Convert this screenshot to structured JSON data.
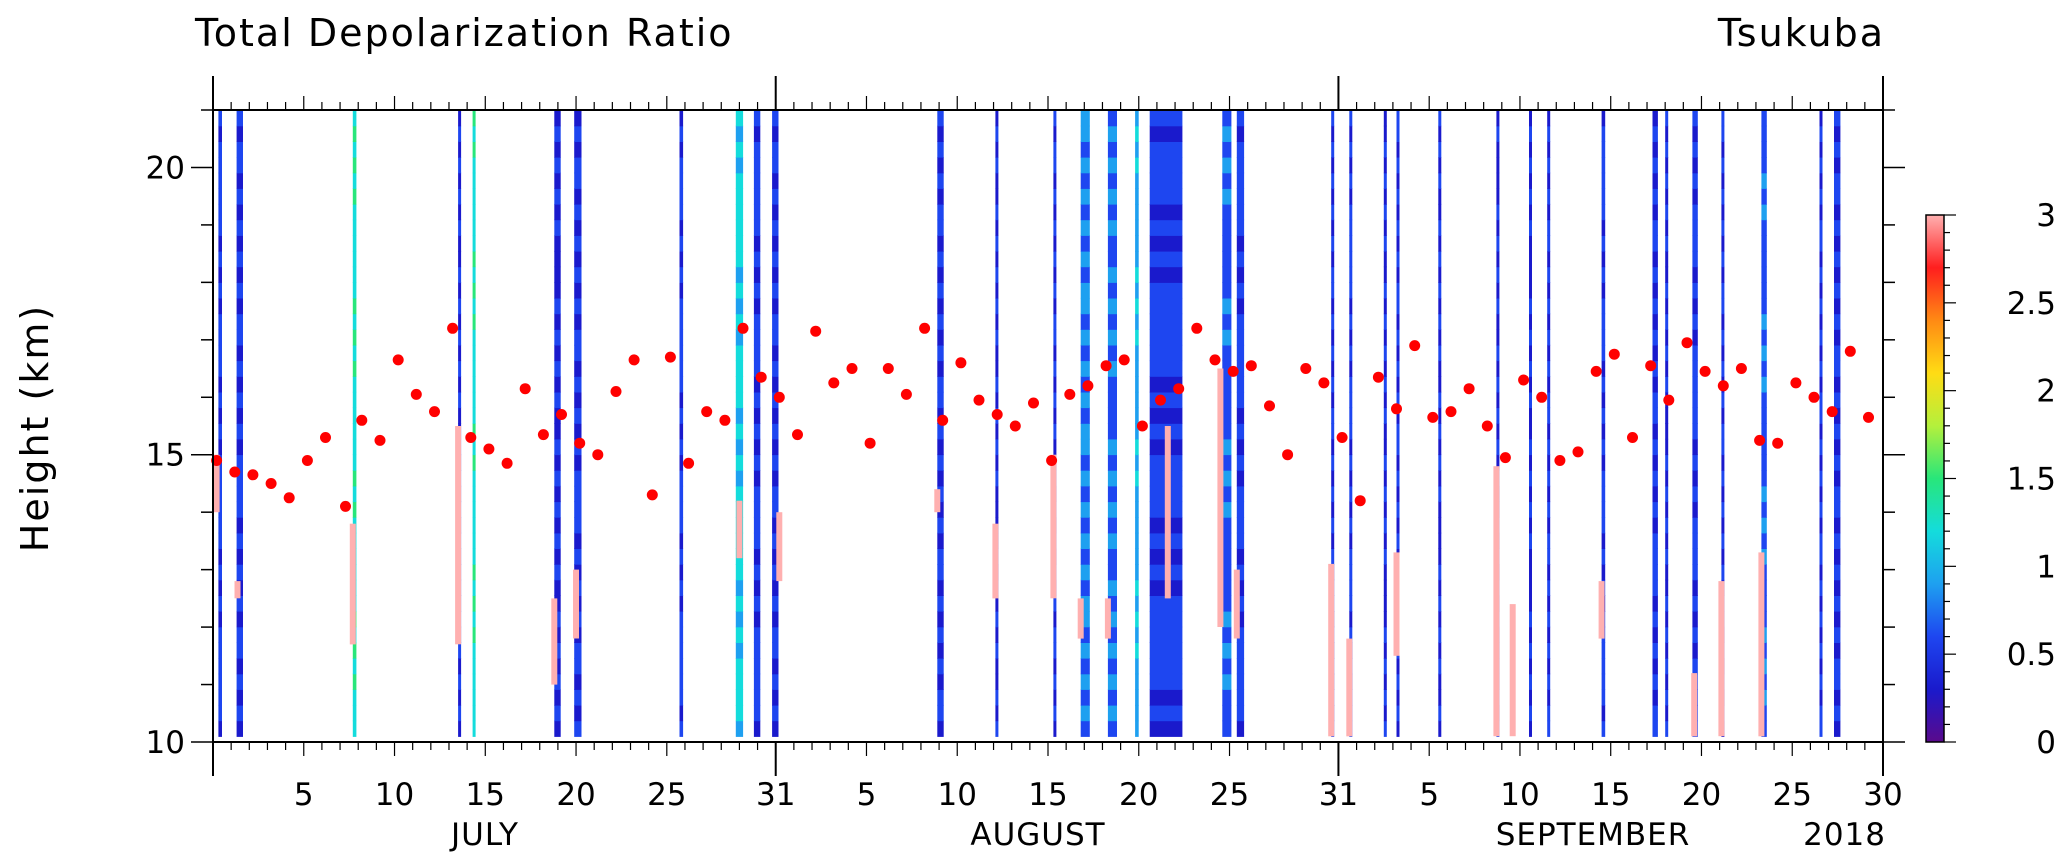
{
  "chart_data": {
    "type": "heatmap",
    "title": "Total Depolarization Ratio",
    "station": "Tsukuba",
    "ylabel": "Height (km)",
    "ylim": [
      10,
      21
    ],
    "y_ticks": [
      10,
      15,
      20
    ],
    "x_range_days": [
      0,
      92
    ],
    "year_label": "2018",
    "months": [
      "JULY",
      "AUGUST",
      "SEPTEMBER"
    ],
    "day_ticks": [
      {
        "day": 5,
        "label": "5"
      },
      {
        "day": 10,
        "label": "10"
      },
      {
        "day": 15,
        "label": "15"
      },
      {
        "day": 20,
        "label": "20"
      },
      {
        "day": 25,
        "label": "25"
      },
      {
        "day": 31,
        "label": "31"
      },
      {
        "day": 36,
        "label": "5"
      },
      {
        "day": 41,
        "label": "10"
      },
      {
        "day": 46,
        "label": "15"
      },
      {
        "day": 51,
        "label": "20"
      },
      {
        "day": 56,
        "label": "25"
      },
      {
        "day": 62,
        "label": "31"
      },
      {
        "day": 67,
        "label": "5"
      },
      {
        "day": 72,
        "label": "10"
      },
      {
        "day": 77,
        "label": "15"
      },
      {
        "day": 82,
        "label": "20"
      },
      {
        "day": 87,
        "label": "25"
      },
      {
        "day": 92,
        "label": "30"
      }
    ],
    "colorbar": {
      "min": 0,
      "max": 3,
      "tick_labels": [
        "0",
        "0.5",
        "1",
        "1.5",
        "2",
        "2.5",
        "3"
      ],
      "tick_values": [
        0,
        0.5,
        1,
        1.5,
        2,
        2.5,
        3
      ]
    },
    "profiles": [
      {
        "x": 0.3,
        "w": 0.2,
        "level": 0.45
      },
      {
        "x": 1.3,
        "w": 0.35,
        "level": 0.4
      },
      {
        "x": 7.7,
        "w": 0.2,
        "level": 0.9
      },
      {
        "x": 13.5,
        "w": 0.15,
        "level": 0.35
      },
      {
        "x": 14.3,
        "w": 0.15,
        "level": 0.9
      },
      {
        "x": 18.8,
        "w": 0.35,
        "level": 0.35
      },
      {
        "x": 19.9,
        "w": 0.4,
        "level": 0.4
      },
      {
        "x": 25.7,
        "w": 0.2,
        "level": 0.45
      },
      {
        "x": 28.8,
        "w": 0.4,
        "level": 0.85
      },
      {
        "x": 29.8,
        "w": 0.35,
        "level": 0.45
      },
      {
        "x": 30.8,
        "w": 0.35,
        "level": 0.4
      },
      {
        "x": 39.9,
        "w": 0.35,
        "level": 0.4
      },
      {
        "x": 43.1,
        "w": 0.15,
        "level": 0.35
      },
      {
        "x": 46.3,
        "w": 0.15,
        "level": 0.4
      },
      {
        "x": 47.8,
        "w": 0.5,
        "level": 0.6
      },
      {
        "x": 49.3,
        "w": 0.5,
        "level": 0.55
      },
      {
        "x": 50.8,
        "w": 0.2,
        "level": 0.7
      },
      {
        "x": 51.6,
        "w": 1.8,
        "level": 0.45
      },
      {
        "x": 55.6,
        "w": 0.5,
        "level": 0.5
      },
      {
        "x": 56.4,
        "w": 0.4,
        "level": 0.45
      },
      {
        "x": 61.6,
        "w": 0.15,
        "level": 0.4
      },
      {
        "x": 62.6,
        "w": 0.15,
        "level": 0.45
      },
      {
        "x": 64.5,
        "w": 0.15,
        "level": 0.35
      },
      {
        "x": 65.2,
        "w": 0.15,
        "level": 0.4
      },
      {
        "x": 67.5,
        "w": 0.15,
        "level": 0.35
      },
      {
        "x": 70.7,
        "w": 0.15,
        "level": 0.35
      },
      {
        "x": 72.5,
        "w": 0.15,
        "level": 0.35
      },
      {
        "x": 73.5,
        "w": 0.15,
        "level": 0.4
      },
      {
        "x": 76.5,
        "w": 0.2,
        "level": 0.45
      },
      {
        "x": 79.3,
        "w": 0.3,
        "level": 0.4
      },
      {
        "x": 80.0,
        "w": 0.15,
        "level": 0.35
      },
      {
        "x": 81.5,
        "w": 0.3,
        "level": 0.45
      },
      {
        "x": 83.1,
        "w": 0.15,
        "level": 0.4
      },
      {
        "x": 85.3,
        "w": 0.3,
        "level": 0.5
      },
      {
        "x": 88.5,
        "w": 0.15,
        "level": 0.4
      },
      {
        "x": 89.3,
        "w": 0.35,
        "level": 0.4
      }
    ],
    "high_depol_segments": [
      {
        "x": 0.2,
        "y0": 14.0,
        "y1": 15.0
      },
      {
        "x": 1.35,
        "y0": 12.5,
        "y1": 12.8
      },
      {
        "x": 7.7,
        "y0": 11.7,
        "y1": 13.8
      },
      {
        "x": 13.5,
        "y0": 11.7,
        "y1": 15.5
      },
      {
        "x": 18.8,
        "y0": 11.0,
        "y1": 12.5
      },
      {
        "x": 20.0,
        "y0": 11.8,
        "y1": 13.0
      },
      {
        "x": 29.0,
        "y0": 13.2,
        "y1": 14.2
      },
      {
        "x": 31.2,
        "y0": 12.8,
        "y1": 14.0
      },
      {
        "x": 39.9,
        "y0": 14.0,
        "y1": 14.4
      },
      {
        "x": 43.1,
        "y0": 12.5,
        "y1": 13.8
      },
      {
        "x": 46.3,
        "y0": 12.5,
        "y1": 15.0
      },
      {
        "x": 47.8,
        "y0": 11.8,
        "y1": 12.5
      },
      {
        "x": 49.3,
        "y0": 11.8,
        "y1": 12.5
      },
      {
        "x": 52.6,
        "y0": 12.5,
        "y1": 15.5
      },
      {
        "x": 55.5,
        "y0": 12.0,
        "y1": 16.5
      },
      {
        "x": 56.4,
        "y0": 11.8,
        "y1": 13.0
      },
      {
        "x": 61.6,
        "y0": 10.1,
        "y1": 13.1
      },
      {
        "x": 62.6,
        "y0": 10.1,
        "y1": 11.8
      },
      {
        "x": 65.2,
        "y0": 11.5,
        "y1": 13.3
      },
      {
        "x": 70.7,
        "y0": 10.1,
        "y1": 14.8
      },
      {
        "x": 71.6,
        "y0": 10.1,
        "y1": 12.4
      },
      {
        "x": 76.5,
        "y0": 11.8,
        "y1": 12.8
      },
      {
        "x": 81.6,
        "y0": 10.1,
        "y1": 11.2
      },
      {
        "x": 83.1,
        "y0": 10.1,
        "y1": 12.8
      },
      {
        "x": 85.3,
        "y0": 10.1,
        "y1": 13.3
      }
    ],
    "tropopause_points": [
      {
        "x": 0.2,
        "y": 14.9
      },
      {
        "x": 1.2,
        "y": 14.7
      },
      {
        "x": 2.2,
        "y": 14.65
      },
      {
        "x": 3.2,
        "y": 14.5
      },
      {
        "x": 4.2,
        "y": 14.25
      },
      {
        "x": 5.2,
        "y": 14.9
      },
      {
        "x": 6.2,
        "y": 15.3
      },
      {
        "x": 7.3,
        "y": 14.1
      },
      {
        "x": 8.2,
        "y": 15.6
      },
      {
        "x": 9.2,
        "y": 15.25
      },
      {
        "x": 10.2,
        "y": 16.65
      },
      {
        "x": 11.2,
        "y": 16.05
      },
      {
        "x": 12.2,
        "y": 15.75
      },
      {
        "x": 13.2,
        "y": 17.2
      },
      {
        "x": 14.2,
        "y": 15.3
      },
      {
        "x": 15.2,
        "y": 15.1
      },
      {
        "x": 16.2,
        "y": 14.85
      },
      {
        "x": 17.2,
        "y": 16.15
      },
      {
        "x": 18.2,
        "y": 15.35
      },
      {
        "x": 19.2,
        "y": 15.7
      },
      {
        "x": 20.2,
        "y": 15.2
      },
      {
        "x": 21.2,
        "y": 15.0
      },
      {
        "x": 22.2,
        "y": 16.1
      },
      {
        "x": 23.2,
        "y": 16.65
      },
      {
        "x": 24.2,
        "y": 14.3
      },
      {
        "x": 25.2,
        "y": 16.7
      },
      {
        "x": 26.2,
        "y": 14.85
      },
      {
        "x": 27.2,
        "y": 15.75
      },
      {
        "x": 28.2,
        "y": 15.6
      },
      {
        "x": 29.2,
        "y": 17.2
      },
      {
        "x": 30.2,
        "y": 16.35
      },
      {
        "x": 31.2,
        "y": 16.0
      },
      {
        "x": 32.2,
        "y": 15.35
      },
      {
        "x": 33.2,
        "y": 17.15
      },
      {
        "x": 34.2,
        "y": 16.25
      },
      {
        "x": 35.2,
        "y": 16.5
      },
      {
        "x": 36.2,
        "y": 15.2
      },
      {
        "x": 37.2,
        "y": 16.5
      },
      {
        "x": 38.2,
        "y": 16.05
      },
      {
        "x": 39.2,
        "y": 17.2
      },
      {
        "x": 40.2,
        "y": 15.6
      },
      {
        "x": 41.2,
        "y": 16.6
      },
      {
        "x": 42.2,
        "y": 15.95
      },
      {
        "x": 43.2,
        "y": 15.7
      },
      {
        "x": 44.2,
        "y": 15.5
      },
      {
        "x": 45.2,
        "y": 15.9
      },
      {
        "x": 46.2,
        "y": 14.9
      },
      {
        "x": 47.2,
        "y": 16.05
      },
      {
        "x": 48.2,
        "y": 16.2
      },
      {
        "x": 49.2,
        "y": 16.55
      },
      {
        "x": 50.2,
        "y": 16.65
      },
      {
        "x": 51.2,
        "y": 15.5
      },
      {
        "x": 52.2,
        "y": 15.95
      },
      {
        "x": 53.2,
        "y": 16.15
      },
      {
        "x": 54.2,
        "y": 17.2
      },
      {
        "x": 55.2,
        "y": 16.65
      },
      {
        "x": 56.2,
        "y": 16.45
      },
      {
        "x": 57.2,
        "y": 16.55
      },
      {
        "x": 58.2,
        "y": 15.85
      },
      {
        "x": 59.2,
        "y": 15.0
      },
      {
        "x": 60.2,
        "y": 16.5
      },
      {
        "x": 61.2,
        "y": 16.25
      },
      {
        "x": 62.2,
        "y": 15.3
      },
      {
        "x": 63.2,
        "y": 14.2
      },
      {
        "x": 64.2,
        "y": 16.35
      },
      {
        "x": 65.2,
        "y": 15.8
      },
      {
        "x": 66.2,
        "y": 16.9
      },
      {
        "x": 67.2,
        "y": 15.65
      },
      {
        "x": 68.2,
        "y": 15.75
      },
      {
        "x": 69.2,
        "y": 16.15
      },
      {
        "x": 70.2,
        "y": 15.5
      },
      {
        "x": 71.2,
        "y": 14.95
      },
      {
        "x": 72.2,
        "y": 16.3
      },
      {
        "x": 73.2,
        "y": 16.0
      },
      {
        "x": 74.2,
        "y": 14.9
      },
      {
        "x": 75.2,
        "y": 15.05
      },
      {
        "x": 76.2,
        "y": 16.45
      },
      {
        "x": 77.2,
        "y": 16.75
      },
      {
        "x": 78.2,
        "y": 15.3
      },
      {
        "x": 79.2,
        "y": 16.55
      },
      {
        "x": 80.2,
        "y": 15.95
      },
      {
        "x": 81.2,
        "y": 16.95
      },
      {
        "x": 82.2,
        "y": 16.45
      },
      {
        "x": 83.2,
        "y": 16.2
      },
      {
        "x": 84.2,
        "y": 16.5
      },
      {
        "x": 85.2,
        "y": 15.25
      },
      {
        "x": 86.2,
        "y": 15.2
      },
      {
        "x": 87.2,
        "y": 16.25
      },
      {
        "x": 88.2,
        "y": 16.0
      },
      {
        "x": 89.2,
        "y": 15.75
      },
      {
        "x": 90.2,
        "y": 16.8
      },
      {
        "x": 91.2,
        "y": 15.65
      }
    ],
    "colors": {
      "tropopause_marker": "#ff0000",
      "high_depol": "#ffb0b0",
      "colorscale": [
        "#5a0a8c",
        "#1a1acc",
        "#1e46f0",
        "#1ea0f0",
        "#14dcdc",
        "#28e67a",
        "#b4f03c",
        "#ffdc14",
        "#ff8a14",
        "#ff1e1e",
        "#ffb0b0"
      ]
    }
  }
}
